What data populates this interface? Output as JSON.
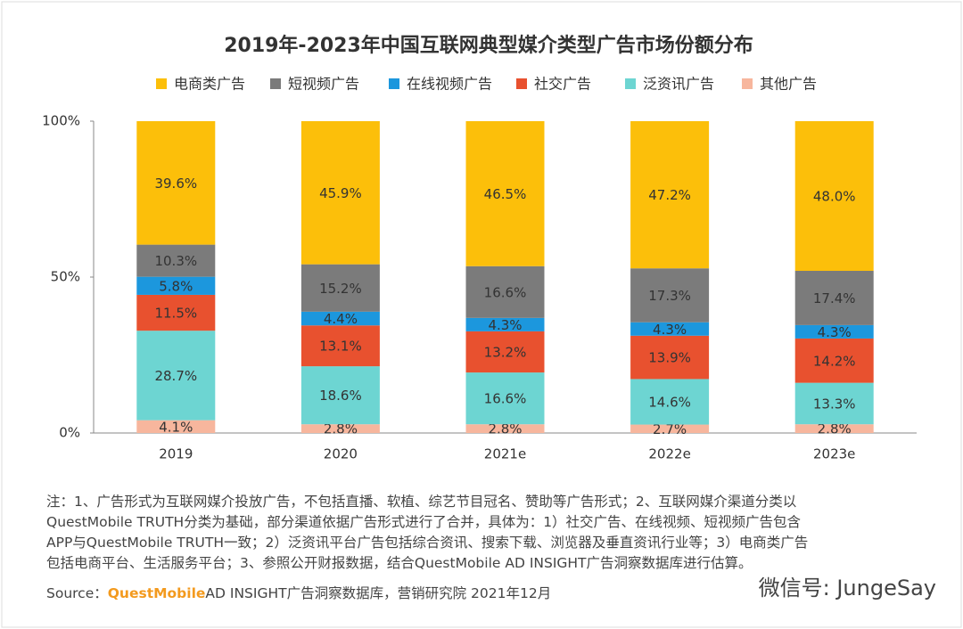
{
  "chart_data": {
    "type": "stacked_bar",
    "title": "2019年-2023年中国互联网典型媒介类型广告市场份额分布",
    "categories": [
      "2019",
      "2020",
      "2021e",
      "2022e",
      "2023e"
    ],
    "series": [
      {
        "name": "电商类广告",
        "color": "#fcbf0a",
        "values": [
          39.6,
          45.9,
          46.5,
          47.2,
          48
        ],
        "value_labels": [
          "39.6%",
          "45.9%",
          "46.5%",
          "47.2%",
          "48.0%"
        ]
      },
      {
        "name": "短视频广告",
        "color": "#7b7b7b",
        "values": [
          10.3,
          15.2,
          16.6,
          17.3,
          17.4
        ],
        "value_labels": [
          "10.3%",
          "15.2%",
          "16.6%",
          "17.3%",
          "17.4%"
        ]
      },
      {
        "name": "在线视频广告",
        "color": "#1c97dd",
        "values": [
          5.8,
          4.4,
          4.3,
          4.3,
          4.3
        ],
        "value_labels": [
          "5.8%",
          "4.4%",
          "4.3%",
          "4.3%",
          "4.3%"
        ]
      },
      {
        "name": "社交广告",
        "color": "#e8512f",
        "values": [
          11.5,
          13.1,
          13.2,
          13.9,
          14.2
        ],
        "value_labels": [
          "11.5%",
          "13.1%",
          "13.2%",
          "13.9%",
          "14.2%"
        ]
      },
      {
        "name": "泛资讯广告",
        "color": "#6dd5d2",
        "values": [
          28.7,
          18.6,
          16.6,
          14.6,
          13.3
        ],
        "value_labels": [
          "28.7%",
          "18.6%",
          "16.6%",
          "14.6%",
          "13.3%"
        ]
      },
      {
        "name": "其他广告",
        "color": "#f7b69d",
        "values": [
          4.1,
          2.8,
          2.8,
          2.7,
          2.8
        ],
        "value_labels": [
          "4.1%",
          "2.8%",
          "2.8%",
          "2.7%",
          "2.8%"
        ]
      }
    ],
    "ylim": [
      0,
      100
    ],
    "yticks": [
      {
        "value": 0,
        "label": "0%"
      },
      {
        "value": 50,
        "label": "50%"
      },
      {
        "value": 100,
        "label": "100%"
      }
    ],
    "notes": [
      "注：1、广告形式为互联网媒介投放广告，不包括直播、软植、综艺节目冠名、赞助等广告形式；2、互联网媒介渠道分类以",
      "QuestMobile TRUTH分类为基础，部分渠道依据广告形式进行了合并，具体为：1）社交广告、在线视频、短视频广告包含",
      "APP与QuestMobile TRUTH一致；2）泛资讯平台广告包括综合资讯、搜索下载、浏览器及垂直资讯行业等；3）电商类广告",
      "包括电商平台、生活服务平台；3、参照公开财报数据，结合QuestMobile AD INSIGHT广告洞察数据库进行估算。"
    ],
    "source_label": "Source：",
    "source_brand": "QuestMobile",
    "source_text": "AD INSIGHT广告洞察数据库，营销研究院 2021年12月",
    "watermark": "微信号: JungeSay"
  }
}
